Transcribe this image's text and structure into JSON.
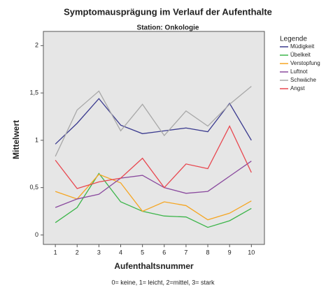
{
  "chart_data": {
    "type": "line",
    "title": "Symptomausprägung im Verlauf der Aufenthalte",
    "subtitle": "Station: Onkologie",
    "x_label": "Aufenthaltsnummer",
    "y_label": "Mittelwert",
    "note": "0= keine, 1= leicht, 2=mittel, 3= stark",
    "legend_title": "Legende",
    "x": [
      1,
      2,
      3,
      4,
      5,
      6,
      7,
      8,
      9,
      10
    ],
    "xlim": [
      0.45,
      10.6
    ],
    "xticks": [
      1,
      2,
      3,
      4,
      5,
      6,
      7,
      8,
      9,
      10
    ],
    "ylim": [
      -0.1,
      2.15
    ],
    "yticks": [
      0,
      {
        "value": 0.5,
        "label": "0,5"
      },
      1,
      {
        "value": 1.5,
        "label": "1,5"
      },
      2
    ],
    "series": [
      {
        "name": "Müdigkeit",
        "color": "#3b3b8f",
        "values": [
          0.96,
          1.18,
          1.44,
          1.16,
          1.07,
          1.1,
          1.13,
          1.09,
          1.39,
          1.0
        ]
      },
      {
        "name": "Übelkeit",
        "color": "#3cb54a",
        "values": [
          0.13,
          0.29,
          0.65,
          0.35,
          0.25,
          0.2,
          0.19,
          0.08,
          0.15,
          0.28
        ]
      },
      {
        "name": "Verstopfung",
        "color": "#f5a623",
        "values": [
          0.46,
          0.38,
          0.64,
          0.55,
          0.25,
          0.35,
          0.31,
          0.16,
          0.23,
          0.36
        ]
      },
      {
        "name": "Luftnot",
        "color": "#8a4a9e",
        "values": [
          0.29,
          0.38,
          0.43,
          0.6,
          0.63,
          0.5,
          0.44,
          0.46,
          0.62,
          0.78
        ]
      },
      {
        "name": "Schwäche",
        "color": "#a8a8a8",
        "values": [
          0.83,
          1.32,
          1.52,
          1.1,
          1.38,
          1.05,
          1.31,
          1.15,
          1.38,
          1.57
        ]
      },
      {
        "name": "Angst",
        "color": "#e8474f",
        "values": [
          0.79,
          0.49,
          0.56,
          0.6,
          0.81,
          0.5,
          0.75,
          0.7,
          1.15,
          0.66
        ]
      }
    ]
  }
}
